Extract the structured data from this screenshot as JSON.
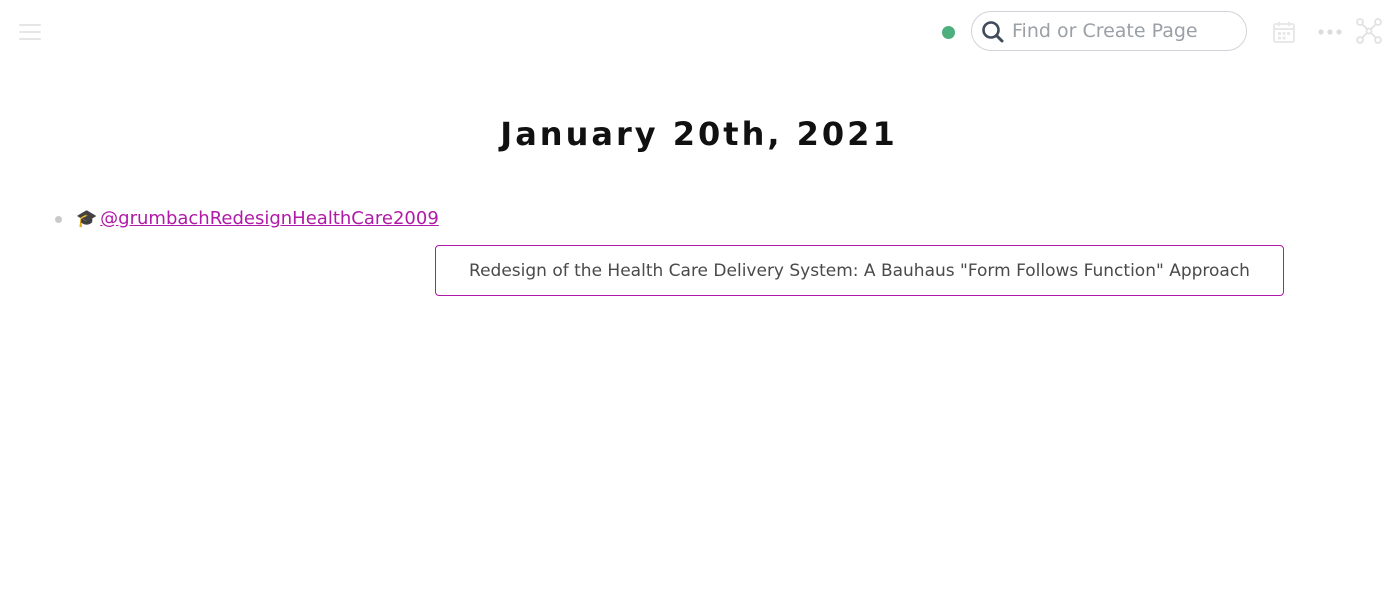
{
  "topbar": {
    "menu_icon": "hamburger-menu-icon",
    "status_color": "#4caf7d",
    "search": {
      "placeholder": "Find or Create Page",
      "value": "",
      "icon": "search-icon"
    },
    "calendar_icon": "calendar-icon",
    "more_icon": "more-dots-icon",
    "graph_icon": "graph-icon"
  },
  "page": {
    "title": "January 20th, 2021",
    "blocks": [
      {
        "icon": "🎓",
        "link_text": "@grumbachRedesignHealthCare2009",
        "link_color": "#b01aa7"
      }
    ]
  },
  "tooltip": {
    "text": "Redesign of the Health Care Delivery System: A Bauhaus \"Form Follows Function\" Approach",
    "border_color": "#b01aa7"
  }
}
